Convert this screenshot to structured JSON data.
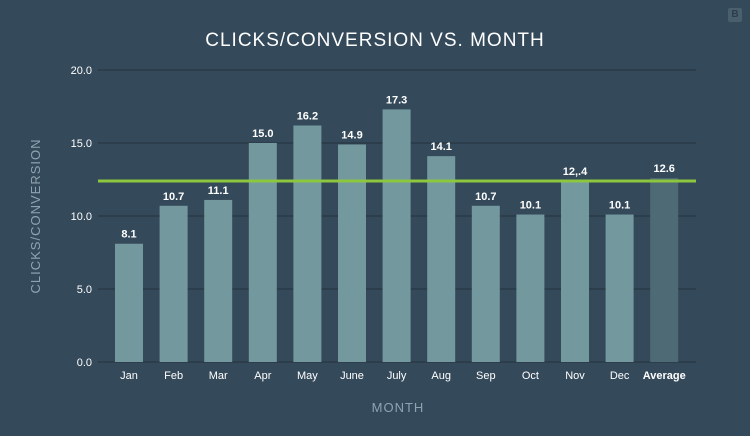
{
  "brand_badge": "B",
  "colors": {
    "background": "#34495a",
    "bar": "#73999f",
    "bar_average": "#4e6a74",
    "reference_line": "#8dc63f",
    "grid": "#23323f",
    "text": "#ffffff",
    "axis_text": "#8fa3b1"
  },
  "chart_data": {
    "type": "bar",
    "title": "CLICKS/CONVERSION VS. MONTH",
    "xlabel": "MONTH",
    "ylabel": "CLICKS/CONVERSION",
    "ylim": [
      0,
      20
    ],
    "yticks": [
      "0.0",
      "5.0",
      "10.0",
      "15.0",
      "20.0"
    ],
    "grid": true,
    "categories": [
      "Jan",
      "Feb",
      "Mar",
      "Apr",
      "May",
      "June",
      "July",
      "Aug",
      "Sep",
      "Oct",
      "Nov",
      "Dec",
      "Average"
    ],
    "values": [
      8.1,
      10.7,
      11.1,
      15.0,
      16.2,
      14.9,
      17.3,
      14.1,
      10.7,
      10.1,
      12.4,
      10.1,
      12.6
    ],
    "data_labels": [
      "8.1",
      "10.7",
      "11.1",
      "15.0",
      "16.2",
      "14.9",
      "17.3",
      "14.1",
      "10.7",
      "10.1",
      "12,.4",
      "10.1",
      "12.6"
    ],
    "highlight_category": "Average",
    "reference_line": 12.4
  }
}
